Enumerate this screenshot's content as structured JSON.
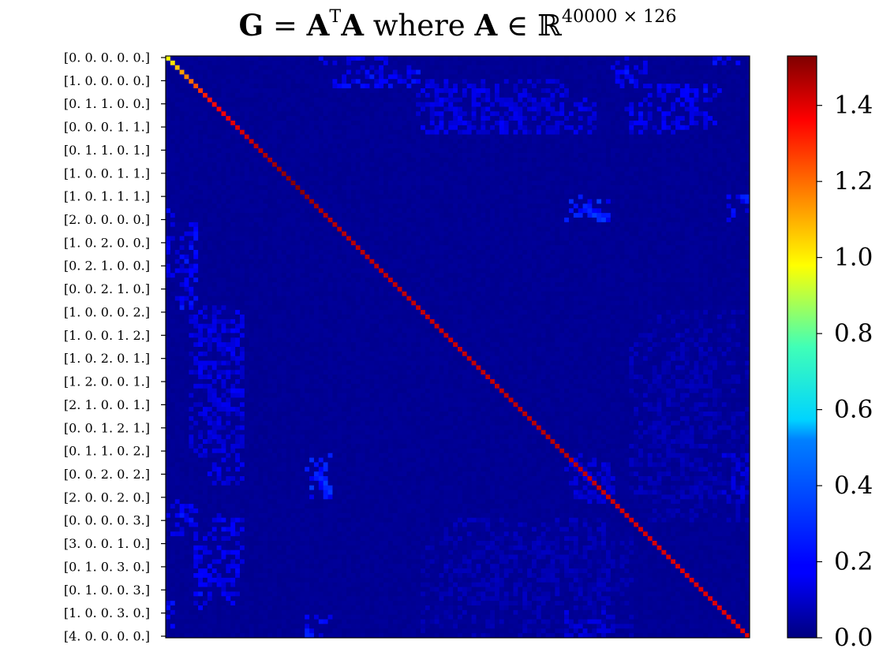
{
  "chart_data": {
    "type": "heatmap",
    "title": {
      "G": "G",
      "equals": "=",
      "A": "A",
      "transpose_sup": "T",
      "where": "where",
      "element_of": "∈",
      "reals": "ℝ",
      "dims_sup": "40000 × 126"
    },
    "matrix_size": 126,
    "ylabels": [
      "[0. 0. 0. 0. 0.]",
      "[1. 0. 0. 0. 0.]",
      "[0. 1. 1. 0. 0.]",
      "[0. 0. 0. 1. 1.]",
      "[0. 1. 1. 0. 1.]",
      "[1. 0. 0. 1. 1.]",
      "[1. 0. 1. 1. 1.]",
      "[2. 0. 0. 0. 0.]",
      "[1. 0. 2. 0. 0.]",
      "[0. 2. 1. 0. 0.]",
      "[0. 0. 2. 1. 0.]",
      "[1. 0. 0. 0. 2.]",
      "[1. 0. 0. 1. 2.]",
      "[1. 0. 2. 0. 1.]",
      "[1. 2. 0. 0. 1.]",
      "[2. 1. 0. 0. 1.]",
      "[0. 0. 1. 2. 1.]",
      "[0. 1. 1. 0. 2.]",
      "[0. 0. 2. 0. 2.]",
      "[2. 0. 0. 2. 0.]",
      "[0. 0. 0. 0. 3.]",
      "[3. 0. 0. 1. 0.]",
      "[0. 1. 0. 3. 0.]",
      "[0. 1. 0. 0. 3.]",
      "[1. 0. 0. 3. 0.]",
      "[4. 0. 0. 0. 0.]"
    ],
    "colorbar": {
      "colormap": "jet",
      "vmin": 0.0,
      "vmax": 1.53,
      "ticks": [
        0.0,
        0.2,
        0.4,
        0.6,
        0.8,
        1.0,
        1.2,
        1.4
      ],
      "tick_labels": [
        "0.0",
        "0.2",
        "0.4",
        "0.6",
        "0.8",
        "1.0",
        "1.2",
        "1.4"
      ]
    },
    "diagonal_anchors": [
      [
        0,
        0.95
      ],
      [
        3,
        1.1
      ],
      [
        8,
        1.3
      ],
      [
        20,
        1.45
      ],
      [
        28,
        1.53
      ],
      [
        34,
        1.45
      ],
      [
        60,
        1.42
      ],
      [
        85,
        1.45
      ],
      [
        100,
        1.4
      ],
      [
        125,
        1.38
      ]
    ],
    "background_value": 0.02,
    "background_noise": 0.02,
    "offdiag_clusters": [
      {
        "rows": [
          0,
          1
        ],
        "cols": [
          32,
          47
        ],
        "value": 0.16
      },
      {
        "rows": [
          2,
          5
        ],
        "cols": [
          38,
          55
        ],
        "value": 0.15
      },
      {
        "rows": [
          0,
          1
        ],
        "cols": [
          118,
          124
        ],
        "value": 0.18
      },
      {
        "rows": [
          1,
          5
        ],
        "cols": [
          96,
          103
        ],
        "value": 0.17
      },
      {
        "rows": [
          6,
          15
        ],
        "cols": [
          106,
          118
        ],
        "value": 0.15
      },
      {
        "rows": [
          5,
          16
        ],
        "cols": [
          55,
          86
        ],
        "value": 0.13
      },
      {
        "rows": [
          31,
          35
        ],
        "cols": [
          86,
          95
        ],
        "value": 0.2
      },
      {
        "rows": [
          30,
          35
        ],
        "cols": [
          121,
          125
        ],
        "value": 0.2
      },
      {
        "rows": [
          36,
          54
        ],
        "cols": [
          3,
          6
        ],
        "value": 0.18
      },
      {
        "rows": [
          54,
          72
        ],
        "cols": [
          6,
          16
        ],
        "value": 0.15
      },
      {
        "rows": [
          72,
          92
        ],
        "cols": [
          9,
          16
        ],
        "value": 0.14
      },
      {
        "rows": [
          86,
          95
        ],
        "cols": [
          30,
          35
        ],
        "value": 0.22
      },
      {
        "rows": [
          96,
          99
        ],
        "cols": [
          0,
          6
        ],
        "value": 0.18
      },
      {
        "rows": [
          99,
          115
        ],
        "cols": [
          6,
          16
        ],
        "value": 0.16
      },
      {
        "rows": [
          115,
          119
        ],
        "cols": [
          6,
          10
        ],
        "value": 0.18
      },
      {
        "rows": [
          121,
          125
        ],
        "cols": [
          30,
          35
        ],
        "value": 0.18
      },
      {
        "rows": [
          86,
          96
        ],
        "cols": [
          87,
          96
        ],
        "value": 0.12
      },
      {
        "rows": [
          86,
          96
        ],
        "cols": [
          121,
          125
        ],
        "value": 0.12
      },
      {
        "rows": [
          60,
          95
        ],
        "cols": [
          100,
          118
        ],
        "value": 0.08
      },
      {
        "rows": [
          104,
          125
        ],
        "cols": [
          55,
          100
        ],
        "value": 0.07
      },
      {
        "rows": [
          120,
          125
        ],
        "cols": [
          86,
          96
        ],
        "value": 0.12
      }
    ]
  }
}
